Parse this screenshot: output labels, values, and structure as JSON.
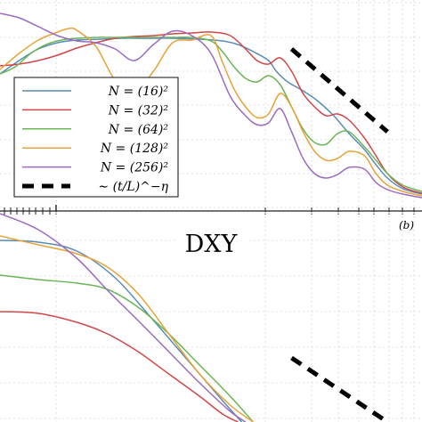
{
  "chart_data": [
    {
      "panel": "top",
      "type": "line",
      "scale": "log-log",
      "title": "",
      "xlabel": "",
      "ylabel": "",
      "grid": true,
      "legend": {
        "placement": "left",
        "entries": [
          "N = (16)²",
          "N = (32)²",
          "N = (64)²",
          "N = (128)²",
          "N = (256)²",
          "∼ (t/L)^−η"
        ]
      },
      "series": [
        {
          "name": "N = (16)²",
          "color": "#5a8bb4",
          "points": [
            [
              0,
              83
            ],
            [
              5,
              68
            ],
            [
              10,
              55
            ],
            [
              15,
              48
            ],
            [
              20,
              45
            ],
            [
              26,
              44
            ],
            [
              32,
              43
            ],
            [
              38,
              43
            ],
            [
              45,
              43
            ],
            [
              52,
              44
            ],
            [
              58,
              46
            ],
            [
              62,
              50
            ],
            [
              66,
              58
            ],
            [
              70,
              68
            ],
            [
              72,
              80
            ],
            [
              75,
              92
            ],
            [
              79,
              102
            ],
            [
              83,
              114
            ],
            [
              87,
              130
            ],
            [
              91,
              150
            ],
            [
              95,
              168
            ],
            [
              98,
              185
            ],
            [
              101,
              200
            ],
            [
              105,
              212
            ],
            [
              110,
              218
            ]
          ]
        },
        {
          "name": "N = (32)²",
          "color": "#d14747",
          "points": [
            [
              0,
              74
            ],
            [
              5,
              72
            ],
            [
              10,
              68
            ],
            [
              15,
              62
            ],
            [
              20,
              54
            ],
            [
              25,
              48
            ],
            [
              30,
              43
            ],
            [
              35,
              41
            ],
            [
              40,
              40
            ],
            [
              45,
              38
            ],
            [
              50,
              37
            ],
            [
              55,
              36
            ],
            [
              60,
              40
            ],
            [
              64,
              55
            ],
            [
              67,
              68
            ],
            [
              70,
              72
            ],
            [
              73,
              65
            ],
            [
              76,
              80
            ],
            [
              79,
              105
            ],
            [
              82,
              120
            ],
            [
              85,
              130
            ],
            [
              88,
              128
            ],
            [
              91,
              135
            ],
            [
              95,
              155
            ],
            [
              98,
              175
            ],
            [
              101,
              195
            ],
            [
              105,
              210
            ],
            [
              110,
              217
            ]
          ]
        },
        {
          "name": "N = (64)²",
          "color": "#6ab557",
          "points": [
            [
              0,
              83
            ],
            [
              4,
              75
            ],
            [
              8,
              60
            ],
            [
              12,
              50
            ],
            [
              16,
              45
            ],
            [
              20,
              43
            ],
            [
              25,
              42
            ],
            [
              30,
              42
            ],
            [
              35,
              42
            ],
            [
              40,
              42
            ],
            [
              45,
              42
            ],
            [
              50,
              42
            ],
            [
              55,
              46
            ],
            [
              58,
              58
            ],
            [
              61,
              75
            ],
            [
              64,
              88
            ],
            [
              67,
              92
            ],
            [
              70,
              85
            ],
            [
              73,
              95
            ],
            [
              76,
              120
            ],
            [
              79,
              145
            ],
            [
              82,
              160
            ],
            [
              85,
              162
            ],
            [
              88,
              150
            ],
            [
              91,
              148
            ],
            [
              95,
              165
            ],
            [
              98,
              180
            ],
            [
              101,
              195
            ],
            [
              105,
              208
            ],
            [
              110,
              215
            ]
          ]
        },
        {
          "name": "N = (128)²",
          "color": "#e8a23a",
          "points": [
            [
              0,
              78
            ],
            [
              5,
              60
            ],
            [
              10,
              45
            ],
            [
              15,
              36
            ],
            [
              18,
              32
            ],
            [
              20,
              34
            ],
            [
              25,
              52
            ],
            [
              30,
              90
            ],
            [
              35,
              103
            ],
            [
              40,
              80
            ],
            [
              45,
              48
            ],
            [
              50,
              45
            ],
            [
              55,
              40
            ],
            [
              58,
              70
            ],
            [
              61,
              100
            ],
            [
              64,
              120
            ],
            [
              67,
              132
            ],
            [
              70,
              128
            ],
            [
              73,
              105
            ],
            [
              76,
              120
            ],
            [
              79,
              148
            ],
            [
              82,
              170
            ],
            [
              85,
              180
            ],
            [
              88,
              178
            ],
            [
              91,
              170
            ],
            [
              95,
              175
            ],
            [
              98,
              195
            ],
            [
              101,
              208
            ],
            [
              105,
              215
            ],
            [
              110,
              220
            ]
          ]
        },
        {
          "name": "N = (256)²",
          "color": "#9b6bbf",
          "points": [
            [
              0,
              15
            ],
            [
              5,
              20
            ],
            [
              10,
              30
            ],
            [
              15,
              40
            ],
            [
              20,
              46
            ],
            [
              25,
              48
            ],
            [
              30,
              55
            ],
            [
              35,
              68
            ],
            [
              40,
              50
            ],
            [
              45,
              35
            ],
            [
              50,
              40
            ],
            [
              55,
              60
            ],
            [
              60,
              108
            ],
            [
              64,
              130
            ],
            [
              67,
              140
            ],
            [
              70,
              138
            ],
            [
              73,
              122
            ],
            [
              76,
              148
            ],
            [
              79,
              178
            ],
            [
              82,
              195
            ],
            [
              85,
              200
            ],
            [
              88,
              196
            ],
            [
              91,
              188
            ],
            [
              95,
              190
            ],
            [
              98,
              205
            ],
            [
              101,
              213
            ],
            [
              105,
              218
            ],
            [
              110,
              222
            ]
          ]
        },
        {
          "name": "∼ (t/L)^−η",
          "color": "#000000",
          "style": "dashed",
          "points": [
            [
              76,
              55
            ],
            [
              101,
              148
            ]
          ]
        }
      ]
    },
    {
      "panel": "bottom",
      "type": "line",
      "scale": "log-log",
      "title": "DXY",
      "corner_label": "(b)",
      "xlabel": "",
      "ylabel": "",
      "grid": true,
      "series": [
        {
          "color": "#5a8bb4",
          "points": [
            [
              0,
              270
            ],
            [
              10,
              272
            ],
            [
              20,
              282
            ],
            [
              30,
              312
            ],
            [
              40,
              360
            ],
            [
              50,
              410
            ],
            [
              58,
              450
            ],
            [
              63,
              474
            ]
          ]
        },
        {
          "color": "#d14747",
          "points": [
            [
              0,
              350
            ],
            [
              10,
              352
            ],
            [
              20,
              362
            ],
            [
              28,
              375
            ],
            [
              36,
              395
            ],
            [
              44,
              420
            ],
            [
              52,
              445
            ],
            [
              58,
              465
            ],
            [
              62,
              474
            ]
          ]
        },
        {
          "color": "#6ab557",
          "points": [
            [
              0,
              309
            ],
            [
              10,
              314
            ],
            [
              20,
              318
            ],
            [
              28,
              325
            ],
            [
              36,
              345
            ],
            [
              44,
              375
            ],
            [
              52,
              410
            ],
            [
              60,
              445
            ],
            [
              66,
              474
            ]
          ]
        },
        {
          "color": "#e8a23a",
          "points": [
            [
              0,
              265
            ],
            [
              10,
              275
            ],
            [
              20,
              285
            ],
            [
              28,
              300
            ],
            [
              36,
              330
            ],
            [
              44,
              375
            ],
            [
              52,
              420
            ],
            [
              60,
              455
            ],
            [
              66,
              474
            ]
          ]
        },
        {
          "color": "#9b6bbf",
          "points": [
            [
              0,
              240
            ],
            [
              10,
              258
            ],
            [
              20,
              290
            ],
            [
              28,
              326
            ],
            [
              36,
              360
            ],
            [
              44,
              395
            ],
            [
              52,
              430
            ],
            [
              60,
              462
            ],
            [
              64,
              474
            ]
          ]
        },
        {
          "color": "#000000",
          "style": "dashed",
          "points": [
            [
              76,
              402
            ],
            [
              101,
              474
            ]
          ]
        }
      ]
    }
  ]
}
